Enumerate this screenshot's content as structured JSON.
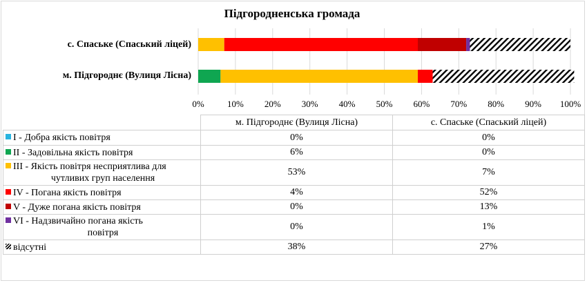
{
  "chart_data": {
    "type": "bar",
    "orientation": "horizontal",
    "stacked": "percent",
    "title": "Підгородненська громада",
    "categories": [
      "с. Спаське (Спаський  ліцей)",
      "м. Підгороднє (Вулиця Лісна)"
    ],
    "xlim": [
      0,
      100
    ],
    "x_ticks": [
      "0%",
      "10%",
      "20%",
      "30%",
      "40%",
      "50%",
      "60%",
      "70%",
      "80%",
      "90%",
      "100%"
    ],
    "series": [
      {
        "name": "I - Добра якість  повітря",
        "color": "#29b4e0",
        "values": [
          0,
          0
        ]
      },
      {
        "name": "II - Задовільна якість  повітря",
        "color": "#0fa651",
        "values": [
          0,
          6
        ]
      },
      {
        "name": "III - Якість повітря несприятлива для чутливих груп населення",
        "color": "#ffc000",
        "values": [
          7,
          53
        ]
      },
      {
        "name": "IV - Погана якість  повітря",
        "color": "#ff0000",
        "values": [
          52,
          4
        ]
      },
      {
        "name": "V - Дуже погана якість  повітря",
        "color": "#c00000",
        "values": [
          13,
          0
        ]
      },
      {
        "name": "VI - Надзвичайно погана якість повітря",
        "color": "#7030a0",
        "values": [
          1,
          0
        ]
      },
      {
        "name": "відсутні",
        "pattern": "diagonal-hatch",
        "values": [
          27,
          38
        ]
      }
    ],
    "data_table": {
      "columns": [
        "м. Підгороднє (Вулиця Лісна)",
        "с. Спаське (Спаський ліцей)"
      ],
      "rows": [
        {
          "label_lines": [
            "I - Добра якість  повітря"
          ],
          "values": [
            "0%",
            "0%"
          ]
        },
        {
          "label_lines": [
            "II - Задовільна якість  повітря"
          ],
          "values": [
            "6%",
            "0%"
          ]
        },
        {
          "label_lines": [
            "III - Якість  повітря несприятлива для",
            "чутливих груп населення"
          ],
          "values": [
            "53%",
            "7%"
          ]
        },
        {
          "label_lines": [
            "IV - Погана якість  повітря"
          ],
          "values": [
            "4%",
            "52%"
          ]
        },
        {
          "label_lines": [
            "V - Дуже погана якість  повітря"
          ],
          "values": [
            "0%",
            "13%"
          ]
        },
        {
          "label_lines": [
            "VI - Надзвичайно погана якість",
            "повітря"
          ],
          "values": [
            "0%",
            "1%"
          ]
        },
        {
          "label_lines": [
            "відсутні"
          ],
          "values": [
            "38%",
            "27%"
          ]
        }
      ]
    },
    "grid": true,
    "legend": "data-table"
  }
}
